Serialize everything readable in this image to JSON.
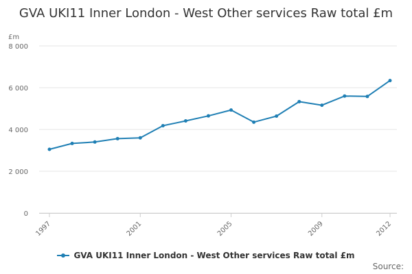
{
  "chart_data": {
    "type": "line",
    "title": "GVA UKI11 Inner London - West Other services Raw total £m",
    "ylabel": "£m",
    "xlabel": "",
    "x": [
      1997,
      1998,
      1999,
      2000,
      2001,
      2002,
      2003,
      2004,
      2005,
      2006,
      2007,
      2008,
      2009,
      2010,
      2011,
      2012
    ],
    "x_ticks": [
      "1997",
      "2001",
      "2005",
      "2009",
      "2012"
    ],
    "y_ticks": [
      "0",
      "2 000",
      "4 000",
      "6 000",
      "8 000"
    ],
    "ylim": [
      0,
      8000
    ],
    "series": [
      {
        "name": "GVA UKI11 Inner London - West Other services Raw total £m",
        "values": [
          3050,
          3330,
          3400,
          3560,
          3600,
          4180,
          4410,
          4650,
          4930,
          4350,
          4640,
          5330,
          5160,
          5600,
          5580,
          6340
        ]
      }
    ],
    "grid": true,
    "legend_position": "bottom",
    "line_color": "#1f7fb4",
    "grid_color": "#e6e6e6"
  },
  "source_label": "Source:"
}
